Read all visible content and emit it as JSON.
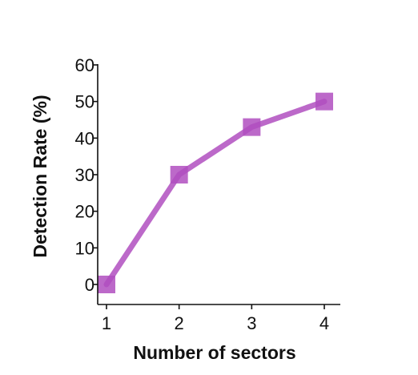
{
  "chart_data": {
    "type": "line",
    "title": "",
    "xlabel": "Number of sectors",
    "ylabel": "Detection Rate (%)",
    "xlim": [
      0.8,
      4.2
    ],
    "ylim": [
      0,
      60
    ],
    "x_ticks": [
      1,
      2,
      3,
      4
    ],
    "y_ticks": [
      0,
      10,
      20,
      30,
      40,
      50,
      60
    ],
    "grid": false,
    "legend": "none",
    "series": [
      {
        "x": [
          1,
          2,
          3,
          4
        ],
        "y": [
          0,
          30,
          43,
          50
        ],
        "color": "#b04fc0",
        "marker": "square"
      }
    ]
  }
}
